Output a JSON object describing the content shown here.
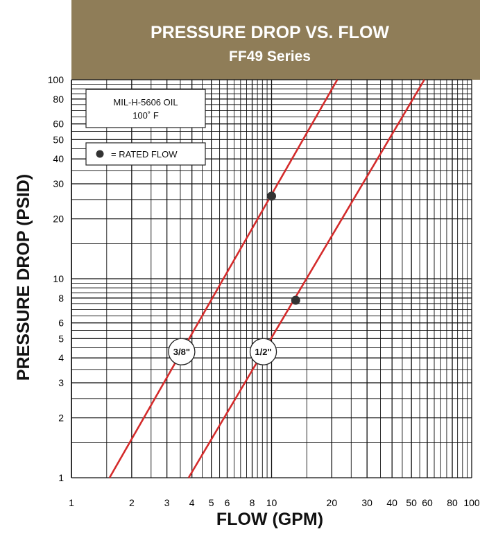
{
  "chart_data": {
    "type": "line",
    "title": "PRESSURE DROP VS. FLOW",
    "subtitle": "FF49 Series",
    "xlabel": "FLOW (GPM)",
    "ylabel": "PRESSURE DROP (PSID)",
    "x_scale": "log",
    "y_scale": "log",
    "xlim": [
      1,
      100
    ],
    "ylim": [
      1,
      100
    ],
    "x_ticks": [
      1,
      2,
      3,
      4,
      5,
      6,
      8,
      10,
      20,
      30,
      40,
      50,
      60,
      80,
      100
    ],
    "y_ticks": [
      1,
      2,
      3,
      4,
      5,
      6,
      8,
      10,
      20,
      30,
      40,
      50,
      60,
      80,
      100
    ],
    "grid": true,
    "series": [
      {
        "name": "3/8\"",
        "x": [
          1.55,
          21.3
        ],
        "y": [
          1,
          100
        ],
        "color": "#d42b2b",
        "rated_flow": {
          "x": 10,
          "y": 26
        }
      },
      {
        "name": "1/2\"",
        "x": [
          3.85,
          58
        ],
        "y": [
          1,
          100
        ],
        "color": "#d42b2b",
        "rated_flow": {
          "x": 13.2,
          "y": 7.8
        }
      }
    ],
    "annotations": [
      {
        "text": "MIL-H-5606 OIL",
        "kind": "legend-line"
      },
      {
        "text": "100˚ F",
        "kind": "legend-line"
      },
      {
        "text": "= RATED FLOW",
        "kind": "legend-marker"
      }
    ],
    "colors": {
      "title_bg": "#8f7d58",
      "line": "#d42b2b",
      "point": "#333333"
    }
  }
}
